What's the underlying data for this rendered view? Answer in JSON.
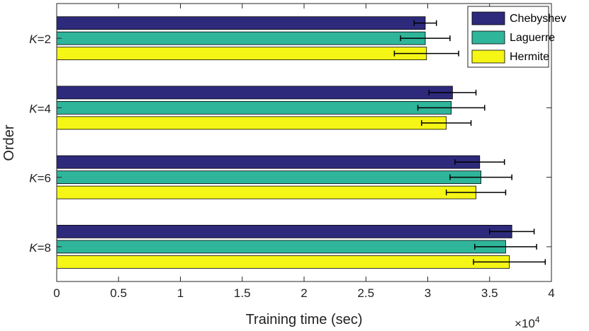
{
  "chart_data": {
    "type": "bar",
    "orientation": "horizontal",
    "categories": [
      {
        "prefix": "K",
        "suffix": "=2"
      },
      {
        "prefix": "K",
        "suffix": "=4"
      },
      {
        "prefix": "K",
        "suffix": "=6"
      },
      {
        "prefix": "K",
        "suffix": "=8"
      }
    ],
    "series": [
      {
        "name": "Chebyshev",
        "color": "#2e2a7b",
        "values": [
          29800,
          32000,
          34200,
          36800
        ],
        "errors": [
          900,
          1900,
          2000,
          1800
        ]
      },
      {
        "name": "Laguerre",
        "color": "#2fb59a",
        "values": [
          29800,
          31900,
          34300,
          36300
        ],
        "errors": [
          2000,
          2700,
          2500,
          2500
        ]
      },
      {
        "name": "Hermite",
        "color": "#f5f516",
        "values": [
          29900,
          31500,
          33900,
          36600
        ],
        "errors": [
          2600,
          2000,
          2400,
          2900
        ]
      }
    ],
    "xlabel": "Training time (sec)",
    "ylabel": "Order",
    "xlim": [
      0,
      40000
    ],
    "xticks": [
      0,
      5000,
      10000,
      15000,
      20000,
      25000,
      30000,
      35000,
      40000
    ],
    "xtick_labels": [
      "0",
      "0.5",
      "1",
      "1.5",
      "2",
      "2.5",
      "3",
      "3.5",
      "4"
    ],
    "x_exponent": {
      "base": "×10",
      "power": "4"
    },
    "legend_position": "top-right",
    "grid": false
  }
}
